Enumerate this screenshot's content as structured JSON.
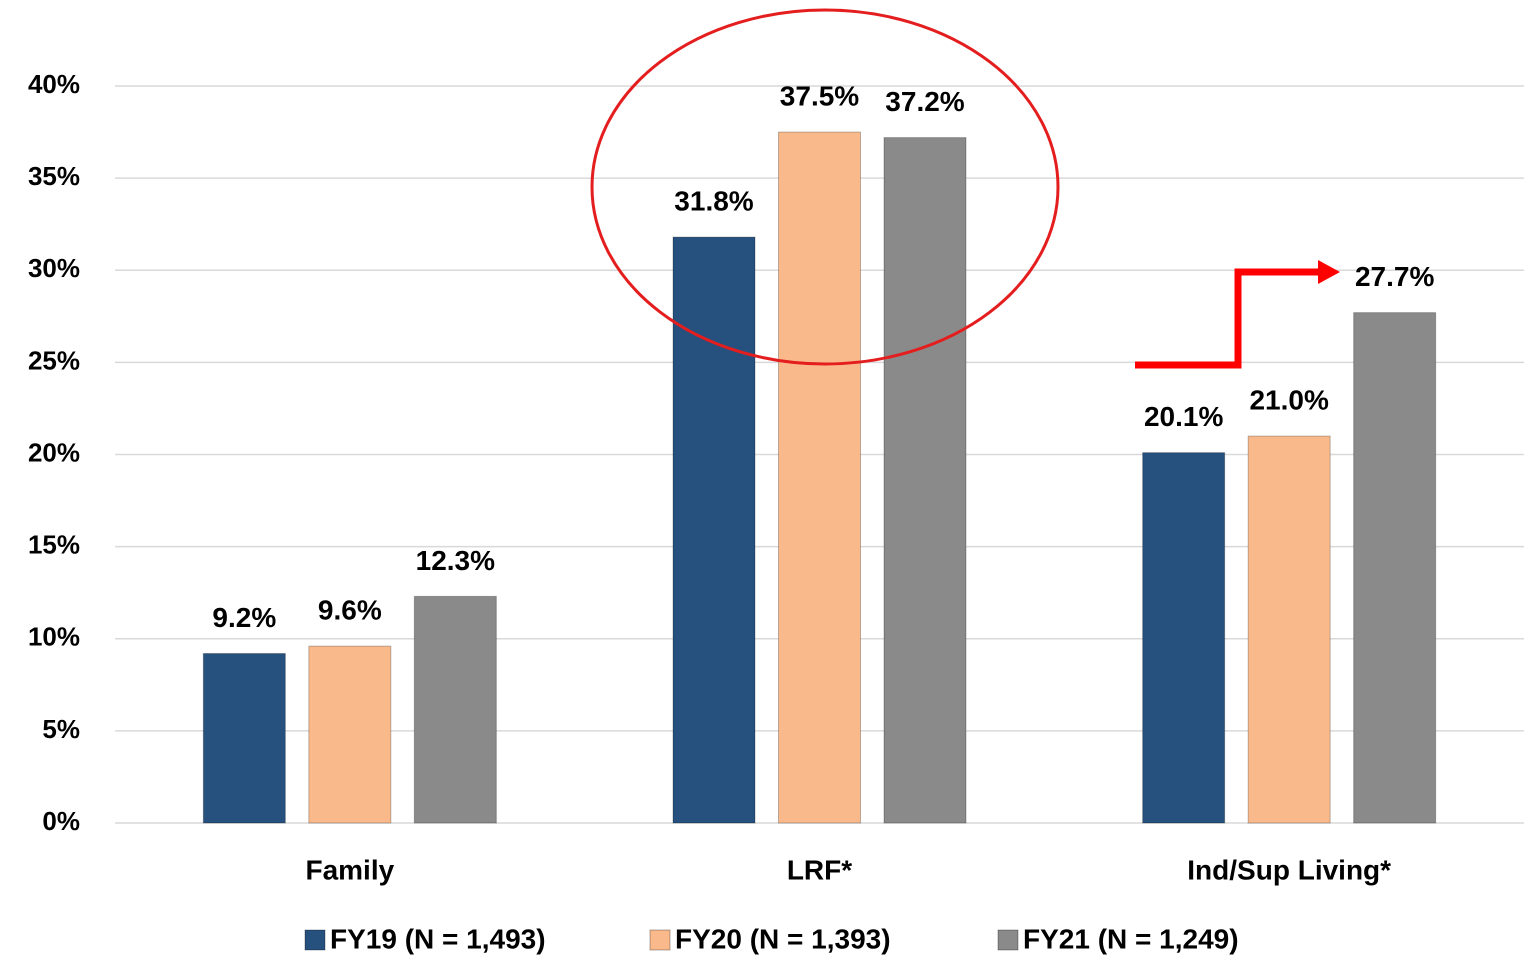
{
  "chart_data": {
    "type": "bar",
    "categories": [
      "Family",
      "LRF*",
      "Ind/Sup Living*"
    ],
    "series": [
      {
        "name": "FY19 (N = 1,493)",
        "color": "#26507e",
        "values": [
          9.2,
          31.8,
          20.1
        ],
        "value_labels": [
          "9.2%",
          "31.8%",
          "20.1%"
        ]
      },
      {
        "name": "FY20 (N = 1,393)",
        "color": "#f9b98b",
        "values": [
          9.6,
          37.5,
          21.0
        ],
        "value_labels": [
          "9.6%",
          "37.5%",
          "21.0%"
        ]
      },
      {
        "name": "FY21 (N = 1,249)",
        "color": "#8a8a8a",
        "values": [
          12.3,
          37.2,
          27.7
        ],
        "value_labels": [
          "12.3%",
          "37.2%",
          "27.7%"
        ]
      }
    ],
    "ylim": [
      0,
      40
    ],
    "yticks": [
      {
        "value": 0,
        "label": "0%"
      },
      {
        "value": 5,
        "label": "5%"
      },
      {
        "value": 10,
        "label": "10%"
      },
      {
        "value": 15,
        "label": "15%"
      },
      {
        "value": 20,
        "label": "20%"
      },
      {
        "value": 25,
        "label": "25%"
      },
      {
        "value": 30,
        "label": "30%"
      },
      {
        "value": 35,
        "label": "35%"
      },
      {
        "value": 40,
        "label": "40%"
      }
    ],
    "grid": true,
    "legend": "bottom"
  }
}
